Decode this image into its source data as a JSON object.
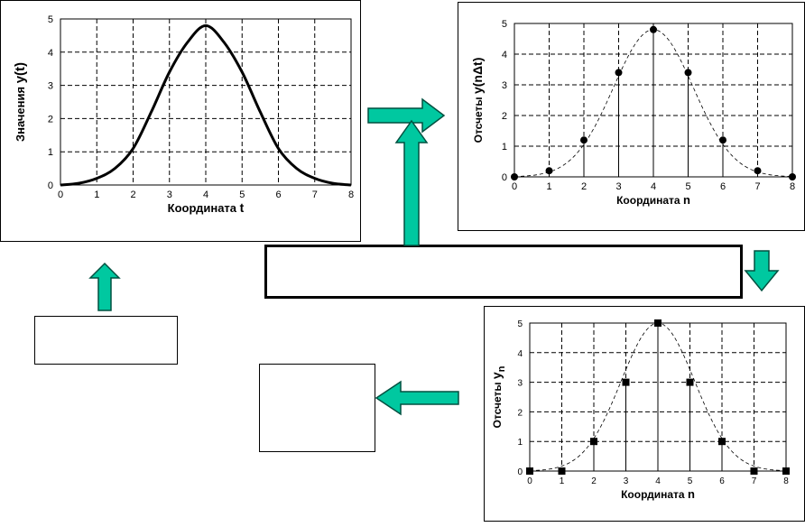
{
  "colors": {
    "arrow_fill": "#00c8a0",
    "arrow_stroke": "#005040",
    "grid": "#000000",
    "curve": "#000000"
  },
  "chart_data": [
    {
      "type": "line",
      "id": "continuous",
      "ylabel_text": "Значения  ",
      "ylabel_symbol": "y(t)",
      "xlabel_text": "Координата  ",
      "xlabel_symbol": "t",
      "xlim": [
        0,
        8
      ],
      "ylim": [
        0,
        5
      ],
      "xticks": [
        "0",
        "1",
        "2",
        "3",
        "4",
        "5",
        "6",
        "7",
        "8"
      ],
      "yticks": [
        "0",
        "1",
        "2",
        "3",
        "4",
        "5"
      ],
      "grid": true,
      "x": [
        0,
        0.5,
        1,
        1.5,
        2,
        2.5,
        3,
        3.5,
        4,
        4.5,
        5,
        5.5,
        6,
        6.5,
        7,
        7.5,
        8
      ],
      "y": [
        0,
        0.05,
        0.2,
        0.5,
        1.1,
        2.2,
        3.4,
        4.3,
        4.8,
        4.3,
        3.4,
        2.2,
        1.1,
        0.5,
        0.2,
        0.05,
        0
      ]
    },
    {
      "type": "scatter",
      "id": "samples",
      "ylabel_text": "Отсчеты  ",
      "ylabel_symbol": "y(nΔt)",
      "xlabel_text": "Координата  ",
      "xlabel_symbol": "n",
      "xlim": [
        0,
        8
      ],
      "ylim": [
        0,
        5
      ],
      "xticks": [
        "0",
        "1",
        "2",
        "3",
        "4",
        "5",
        "6",
        "7",
        "8"
      ],
      "yticks": [
        "0",
        "1",
        "2",
        "3",
        "4",
        "5"
      ],
      "grid": true,
      "marker": "circle",
      "stems": true,
      "envelope": "dashed",
      "x": [
        0,
        1,
        2,
        3,
        4,
        5,
        6,
        7,
        8
      ],
      "y": [
        0,
        0.2,
        1.2,
        3.4,
        4.8,
        3.4,
        1.2,
        0.2,
        0
      ]
    },
    {
      "type": "scatter",
      "id": "quantized",
      "ylabel_text": "Отсчеты  ",
      "ylabel_symbol": "y",
      "ylabel_sub": "n",
      "xlabel_text": "Координата  ",
      "xlabel_symbol": "n",
      "xlim": [
        0,
        8
      ],
      "ylim": [
        0,
        5
      ],
      "xticks": [
        "0",
        "1",
        "2",
        "3",
        "4",
        "5",
        "6",
        "7",
        "8"
      ],
      "yticks": [
        "0",
        "1",
        "2",
        "3",
        "4",
        "5"
      ],
      "grid": true,
      "marker": "square",
      "stems": true,
      "envelope": "dashed",
      "x": [
        0,
        1,
        2,
        3,
        4,
        5,
        6,
        7,
        8
      ],
      "y": [
        0,
        0,
        1,
        3,
        5,
        3,
        1,
        0,
        0
      ]
    }
  ]
}
